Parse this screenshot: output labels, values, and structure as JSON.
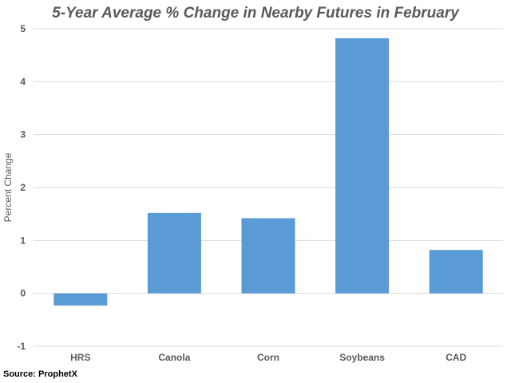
{
  "chart_data": {
    "type": "bar",
    "title": "5-Year Average % Change in Nearby Futures in February",
    "ylabel": "Percent Change",
    "xlabel": "",
    "categories": [
      "HRS",
      "Canola",
      "Corn",
      "Soybeans",
      "CAD"
    ],
    "values": [
      -0.23,
      1.52,
      1.42,
      4.82,
      0.82
    ],
    "ylim": [
      -1,
      5
    ],
    "yticks": [
      "-1",
      "0",
      "1",
      "2",
      "3",
      "4",
      "5"
    ],
    "grid": true,
    "bar_color": "#5b9bd5"
  },
  "source": "Source: ProphetX"
}
